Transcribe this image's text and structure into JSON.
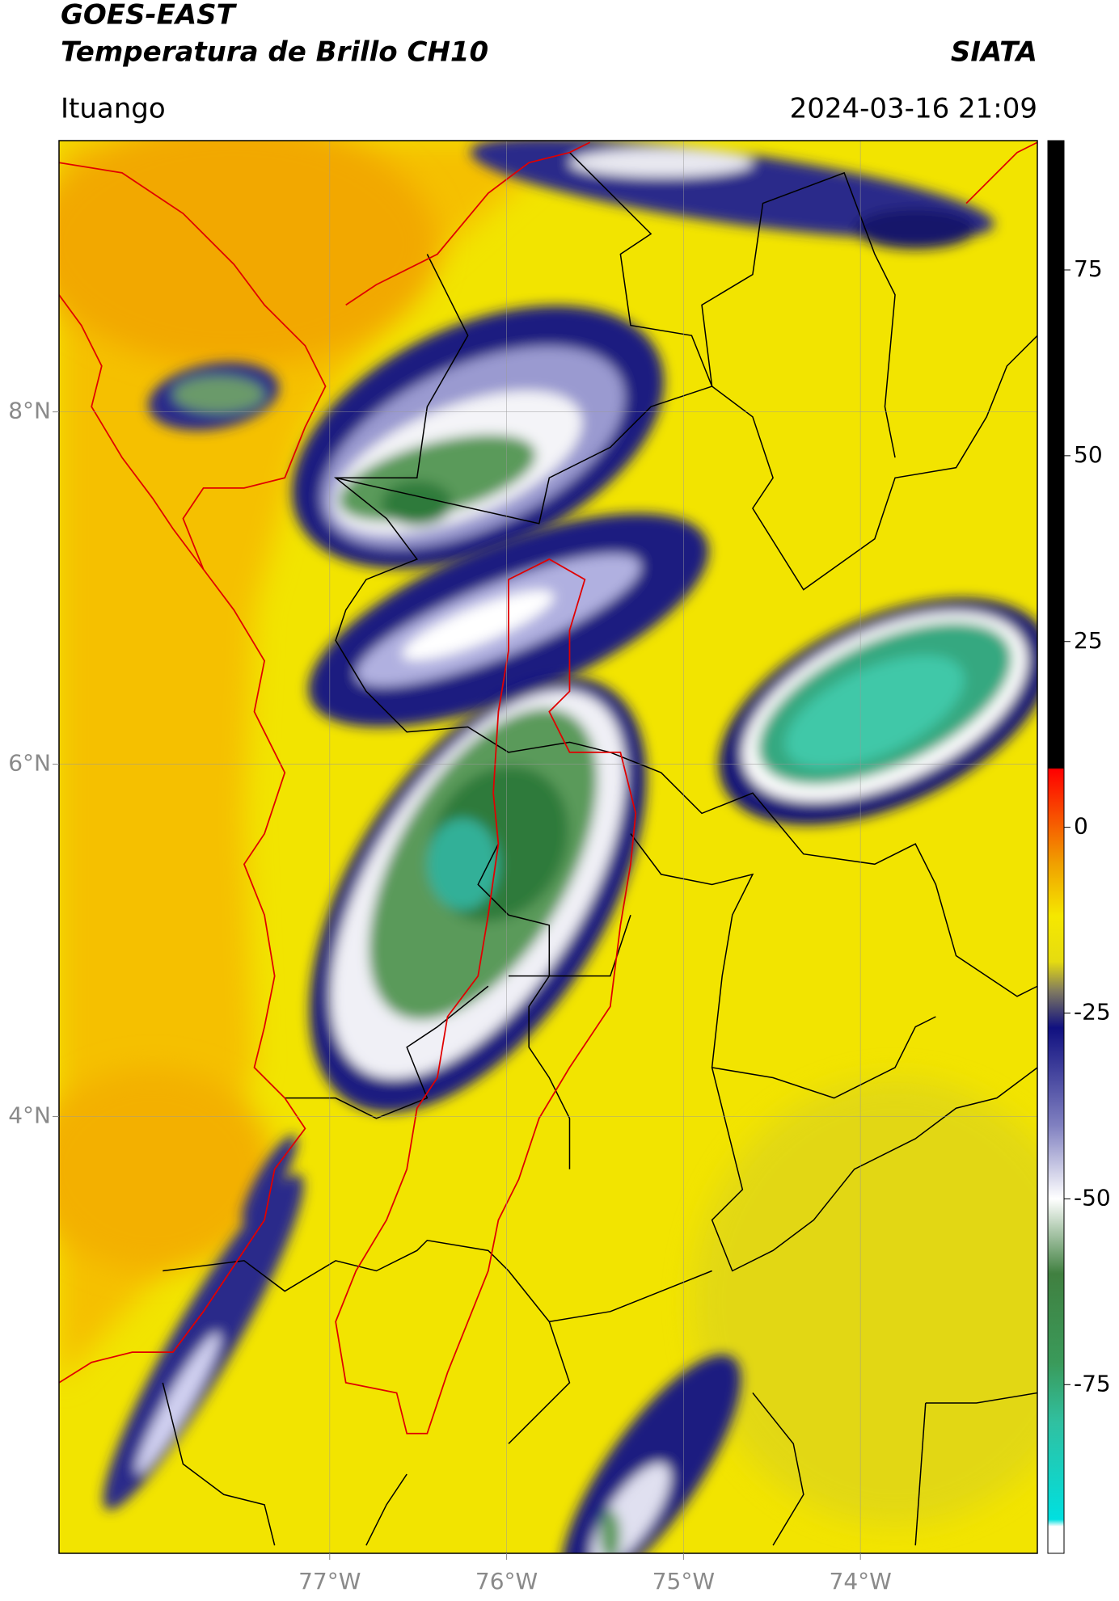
{
  "header": {
    "title": "GOES-EAST",
    "subtitle": "Temperatura de Brillo CH10",
    "org": "SIATA",
    "region": "Ituango",
    "datetime": "2024-03-16 21:09"
  },
  "map": {
    "xlim": [
      -78.53,
      -73.0
    ],
    "ylim": [
      1.52,
      9.54
    ],
    "xticks": [
      {
        "value": -77,
        "label": "77°W"
      },
      {
        "value": -76,
        "label": "76°W"
      },
      {
        "value": -75,
        "label": "75°W"
      },
      {
        "value": -74,
        "label": "74°W"
      }
    ],
    "yticks": [
      {
        "value": 8,
        "label": "8°N"
      },
      {
        "value": 6,
        "label": "6°N"
      },
      {
        "value": 4,
        "label": "4°N"
      }
    ],
    "grid": true
  },
  "colorbar": {
    "lim": [
      -97.7,
      92.4
    ],
    "ticks": [
      75,
      50,
      25,
      0,
      -25,
      -50,
      -75
    ]
  }
}
